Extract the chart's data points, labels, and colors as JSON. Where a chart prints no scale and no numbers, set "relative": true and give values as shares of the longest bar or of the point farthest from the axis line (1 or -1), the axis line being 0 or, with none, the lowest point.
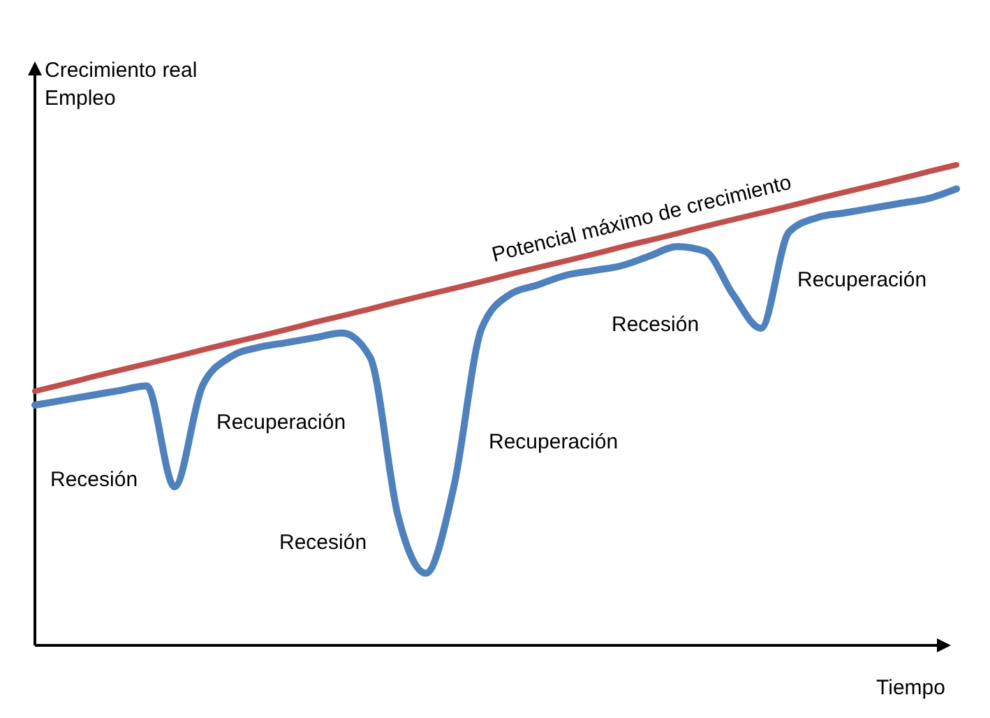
{
  "chart_data": {
    "type": "line",
    "relative": true,
    "ylabel": "Crecimiento real\nEmpleo",
    "xlabel": "Tiempo",
    "categories": [
      null,
      null,
      null,
      null,
      null,
      null,
      null,
      null,
      null,
      null,
      null,
      null,
      null,
      null,
      null,
      null,
      null,
      null,
      null,
      null,
      null,
      null,
      null,
      null,
      null,
      null,
      null,
      null,
      null,
      null,
      null,
      null,
      null,
      null
    ],
    "series": [
      {
        "name": "Potencial máximo de crecimiento",
        "color": "#c0504d",
        "values": [
          0.529,
          0.543,
          0.558,
          0.572,
          0.586,
          0.6,
          0.615,
          0.629,
          0.643,
          0.657,
          0.672,
          0.686,
          0.7,
          0.715,
          0.729,
          0.743,
          0.757,
          0.772,
          0.786,
          0.8,
          0.814,
          0.829,
          0.843,
          0.857,
          0.872,
          0.886,
          0.9,
          0.914,
          0.929,
          0.943,
          0.957,
          0.971,
          0.986,
          1.0
        ]
      },
      {
        "color": "#4f81bd",
        "values": [
          0.5,
          0.51,
          0.52,
          0.53,
          0.54,
          0.33,
          0.54,
          0.6,
          0.62,
          0.63,
          0.64,
          0.65,
          0.6,
          0.27,
          0.15,
          0.33,
          0.66,
          0.73,
          0.75,
          0.77,
          0.78,
          0.79,
          0.81,
          0.83,
          0.82,
          0.73,
          0.66,
          0.86,
          0.89,
          0.9,
          0.91,
          0.92,
          0.93,
          0.95
        ]
      }
    ],
    "annotations": [
      "Recesión",
      "Recuperación",
      "Recesión",
      "Recuperación",
      "Recesión",
      "Recuperación"
    ]
  }
}
